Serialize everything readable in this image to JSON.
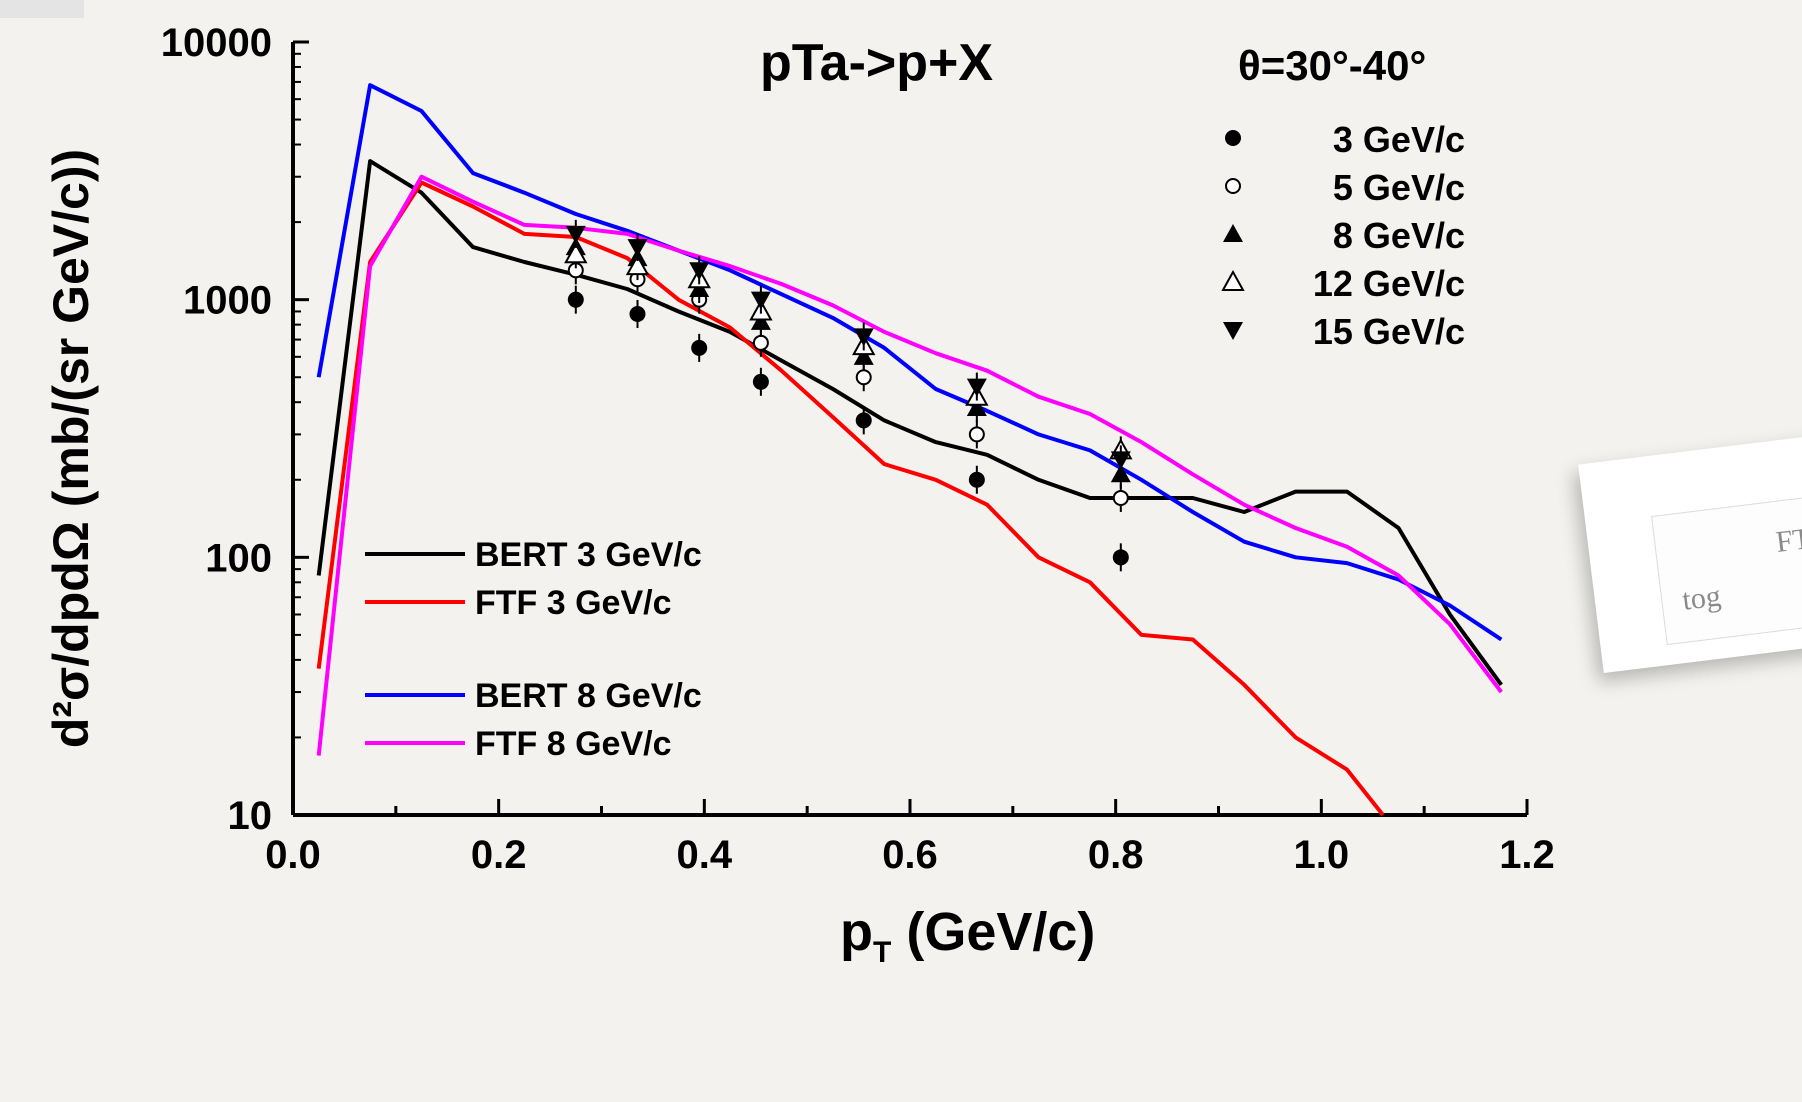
{
  "chart_data": {
    "type": "line",
    "title": "pTa->p+X",
    "angle_label": "θ=30°-40°",
    "xlabel": "p",
    "xlabel_sub": "T",
    "xlabel_unit": " (GeV/c)",
    "ylabel": "d²σ/dpdΩ (mb/(sr GeV/c))",
    "yscale": "log",
    "xlim": [
      0.0,
      1.2
    ],
    "ylim": [
      10,
      10000
    ],
    "xticks": [
      "0.0",
      "0.2",
      "0.4",
      "0.6",
      "0.8",
      "1.0",
      "1.2"
    ],
    "yticks": [
      "10",
      "100",
      "1000",
      "10000"
    ],
    "legend_points_position": "top-right",
    "legend_lines_position": "lower-left",
    "series": [
      {
        "name": "BERT 3 GeV/c",
        "color": "#000000",
        "x": [
          0.025,
          0.075,
          0.125,
          0.175,
          0.225,
          0.275,
          0.325,
          0.375,
          0.425,
          0.475,
          0.525,
          0.575,
          0.625,
          0.675,
          0.725,
          0.775,
          0.825,
          0.875,
          0.925,
          0.975,
          1.025,
          1.075,
          1.125,
          1.175
        ],
        "y": [
          85,
          3450,
          2600,
          1600,
          1400,
          1250,
          1100,
          900,
          750,
          580,
          450,
          340,
          280,
          250,
          200,
          170,
          170,
          170,
          150,
          180,
          180,
          130,
          60,
          32
        ]
      },
      {
        "name": "FTF  3 GeV/c",
        "color": "#ff0000",
        "x": [
          0.025,
          0.075,
          0.125,
          0.175,
          0.225,
          0.275,
          0.325,
          0.375,
          0.425,
          0.475,
          0.525,
          0.575,
          0.625,
          0.675,
          0.725,
          0.775,
          0.825,
          0.875,
          0.925,
          0.975,
          1.025,
          1.06
        ],
        "y": [
          37,
          1400,
          2850,
          2300,
          1800,
          1750,
          1450,
          1000,
          780,
          530,
          350,
          230,
          200,
          160,
          100,
          80,
          50,
          48,
          32,
          20,
          15,
          10
        ]
      },
      {
        "name": "BERT 8 GeV/c",
        "color": "#0000ff",
        "x": [
          0.025,
          0.075,
          0.125,
          0.175,
          0.225,
          0.275,
          0.325,
          0.375,
          0.425,
          0.475,
          0.525,
          0.575,
          0.625,
          0.675,
          0.725,
          0.775,
          0.825,
          0.875,
          0.925,
          0.975,
          1.025,
          1.075,
          1.125,
          1.175
        ],
        "y": [
          500,
          6800,
          5400,
          3100,
          2600,
          2150,
          1850,
          1550,
          1300,
          1050,
          850,
          650,
          450,
          370,
          300,
          260,
          200,
          150,
          115,
          100,
          95,
          82,
          65,
          48
        ]
      },
      {
        "name": "FTF  8 GeV/c",
        "color": "#ff00ff",
        "x": [
          0.025,
          0.075,
          0.125,
          0.175,
          0.225,
          0.275,
          0.325,
          0.375,
          0.425,
          0.475,
          0.525,
          0.575,
          0.625,
          0.675,
          0.725,
          0.775,
          0.825,
          0.875,
          0.925,
          0.975,
          1.025,
          1.075,
          1.125,
          1.175
        ],
        "y": [
          17,
          1350,
          3000,
          2400,
          1950,
          1900,
          1800,
          1550,
          1350,
          1150,
          950,
          750,
          620,
          530,
          420,
          360,
          280,
          210,
          160,
          130,
          110,
          85,
          55,
          30
        ]
      }
    ],
    "points": [
      {
        "name": "3 GeV/c",
        "marker": "filled-circle",
        "x": [
          0.275,
          0.335,
          0.395,
          0.455,
          0.555,
          0.665,
          0.805
        ],
        "y": [
          1000,
          880,
          650,
          480,
          340,
          200,
          100
        ]
      },
      {
        "name": "5 GeV/c",
        "marker": "open-circle",
        "x": [
          0.275,
          0.335,
          0.395,
          0.455,
          0.555,
          0.665,
          0.805
        ],
        "y": [
          1300,
          1200,
          1000,
          680,
          500,
          300,
          170
        ]
      },
      {
        "name": "8 GeV/c",
        "marker": "filled-triangle-up",
        "x": [
          0.275,
          0.335,
          0.395,
          0.455,
          0.555,
          0.665,
          0.805
        ],
        "y": [
          1600,
          1450,
          1100,
          820,
          600,
          380,
          210
        ]
      },
      {
        "name": "12 GeV/c",
        "marker": "open-triangle-up",
        "x": [
          0.275,
          0.335,
          0.395,
          0.455,
          0.555,
          0.665,
          0.805
        ],
        "y": [
          1500,
          1350,
          1200,
          900,
          660,
          420,
          260
        ]
      },
      {
        "name": "15 GeV/c",
        "marker": "filled-triangle-down",
        "x": [
          0.275,
          0.335,
          0.395,
          0.455,
          0.555,
          0.665,
          0.805
        ],
        "y": [
          1800,
          1600,
          1300,
          1000,
          720,
          460,
          240
        ]
      }
    ]
  },
  "note_text": [
    "FT",
    "tog"
  ]
}
